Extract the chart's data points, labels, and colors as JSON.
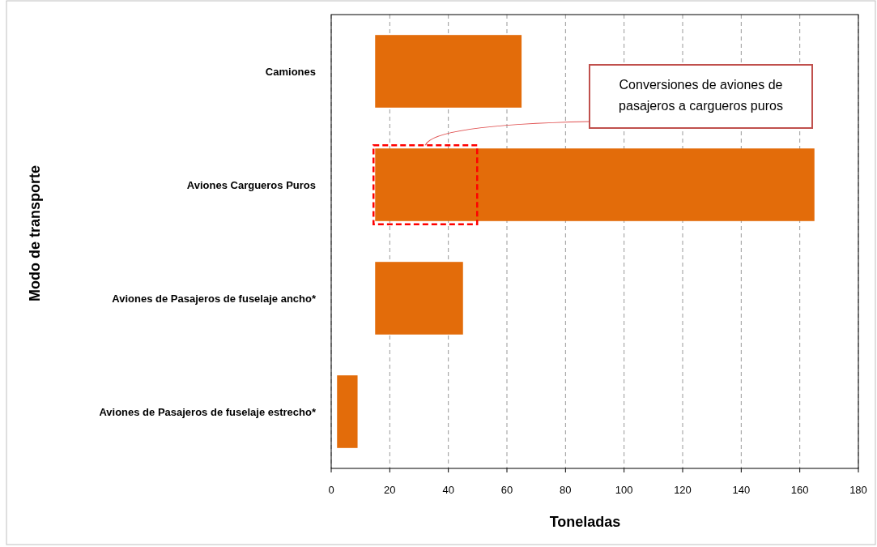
{
  "chart_data": {
    "type": "bar",
    "orientation": "horizontal",
    "xlabel": "Toneladas",
    "ylabel": "Modo de transporte",
    "categories": [
      "Camiones",
      "Aviones Cargueros Puros",
      "Aviones de Pasajeros de fuselaje ancho*",
      "Aviones de Pasajeros de fuselaje estrecho*"
    ],
    "values": [
      50,
      150,
      30,
      7
    ],
    "base": [
      15,
      15,
      15,
      2
    ],
    "color": "#e36c0a",
    "xlim": [
      0,
      180
    ],
    "xticks": [
      0,
      20,
      40,
      60,
      80,
      100,
      120,
      140,
      160,
      180
    ],
    "grid": "x",
    "annotations": [
      "Conversiones de aviones de pasajeros a cargueros puros"
    ]
  }
}
